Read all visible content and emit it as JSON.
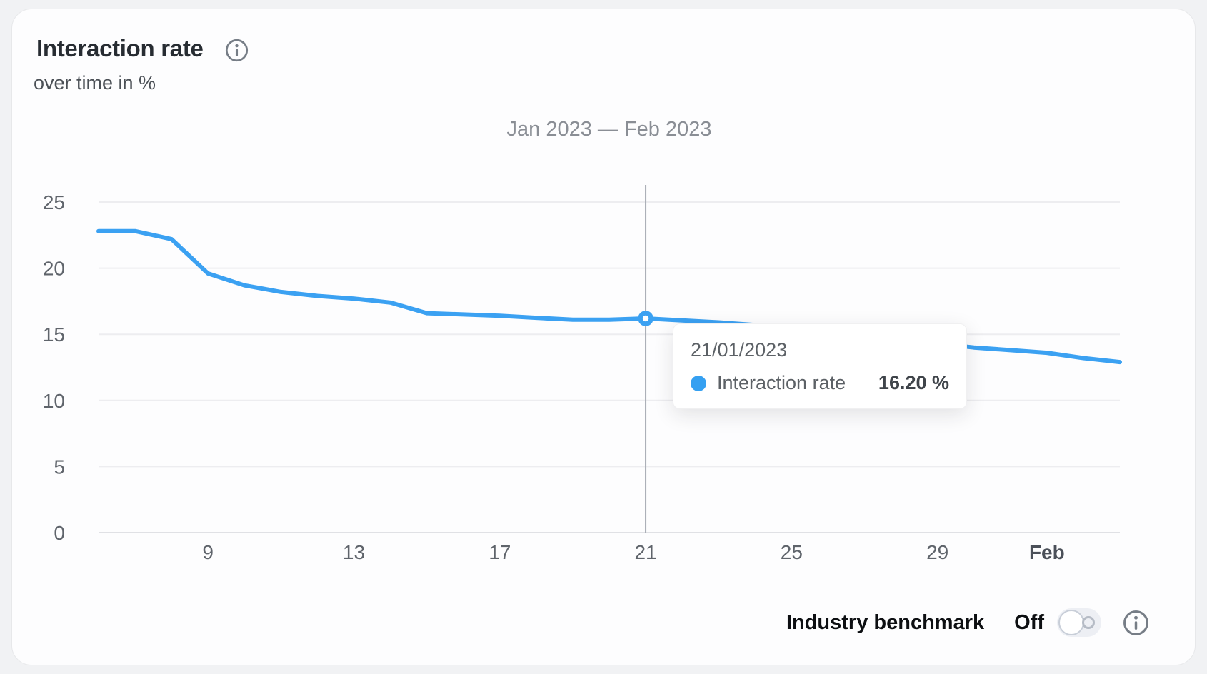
{
  "header": {
    "title": "Interaction rate",
    "subtitle": "over time in %"
  },
  "chart_data": {
    "type": "line",
    "title": "Jan 2023 — Feb 2023",
    "xlabel": "",
    "ylabel": "",
    "ylim": [
      0,
      25
    ],
    "yticks": [
      0,
      5,
      10,
      15,
      20,
      25
    ],
    "grid": true,
    "legend_position": "none",
    "dates": [
      "06/01/2023",
      "07/01/2023",
      "08/01/2023",
      "09/01/2023",
      "10/01/2023",
      "11/01/2023",
      "12/01/2023",
      "13/01/2023",
      "14/01/2023",
      "15/01/2023",
      "16/01/2023",
      "17/01/2023",
      "18/01/2023",
      "19/01/2023",
      "20/01/2023",
      "21/01/2023",
      "22/01/2023",
      "23/01/2023",
      "24/01/2023",
      "25/01/2023",
      "26/01/2023",
      "27/01/2023",
      "28/01/2023",
      "29/01/2023",
      "30/01/2023",
      "31/01/2023",
      "01/02/2023",
      "02/02/2023",
      "03/02/2023"
    ],
    "series": [
      {
        "name": "Interaction rate",
        "color": "#3BA1F2",
        "values": [
          22.8,
          22.8,
          22.2,
          19.6,
          18.7,
          18.2,
          17.9,
          17.7,
          17.4,
          16.6,
          16.5,
          16.4,
          16.25,
          16.1,
          16.1,
          16.2,
          16.05,
          15.9,
          15.7,
          15.45,
          15.2,
          14.9,
          14.6,
          14.3,
          14.0,
          13.8,
          13.6,
          13.2,
          12.9
        ]
      }
    ],
    "xticks": [
      {
        "index": 3,
        "label": "9",
        "bold": false
      },
      {
        "index": 7,
        "label": "13",
        "bold": false
      },
      {
        "index": 11,
        "label": "17",
        "bold": false
      },
      {
        "index": 15,
        "label": "21",
        "bold": false
      },
      {
        "index": 19,
        "label": "25",
        "bold": false
      },
      {
        "index": 23,
        "label": "29",
        "bold": false
      },
      {
        "index": 26,
        "label": "Feb",
        "bold": true
      }
    ],
    "highlight": {
      "index": 15,
      "date": "21/01/2023",
      "value": 16.2
    }
  },
  "tooltip": {
    "date": "21/01/2023",
    "series_label": "Interaction rate",
    "value": "16.20 %"
  },
  "benchmark": {
    "label": "Industry benchmark",
    "state_label": "Off",
    "enabled": false
  },
  "icons": {
    "info": "i",
    "series_dot": "●",
    "toggle_state": "off"
  },
  "colors": {
    "accent": "#3BA1F2",
    "grid": "#EDEDF0",
    "baseline": "#E0E1E5",
    "crosshair": "#A6ABB3",
    "axis_text": "#5F646B"
  }
}
